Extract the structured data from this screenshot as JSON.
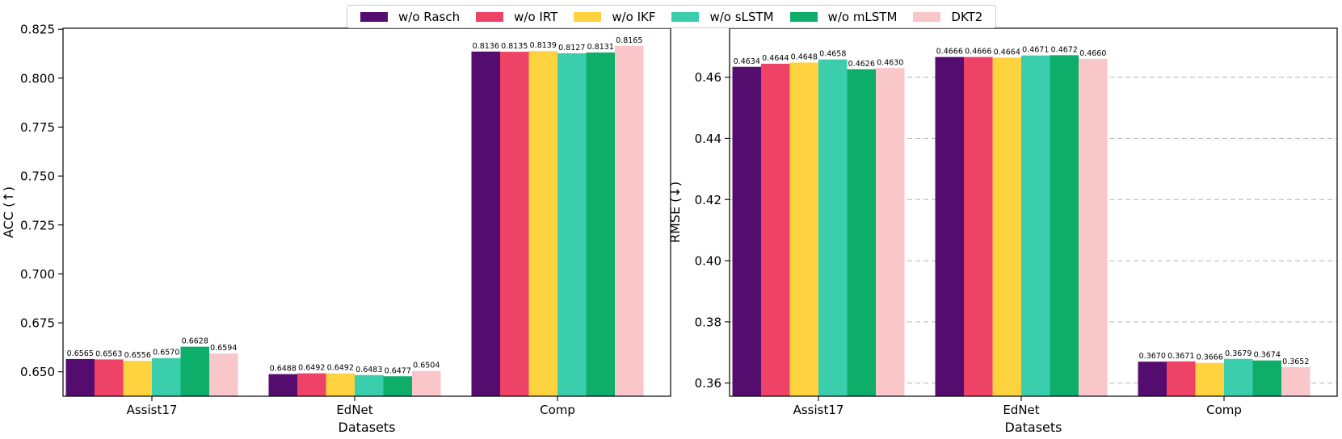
{
  "legend": {
    "items": [
      {
        "label": "w/o Rasch",
        "color": "#540D6E"
      },
      {
        "label": "w/o IRT",
        "color": "#EE4266"
      },
      {
        "label": "w/o IKF",
        "color": "#FFD23F"
      },
      {
        "label": "w/o sLSTM",
        "color": "#3BCEAC"
      },
      {
        "label": "w/o mLSTM",
        "color": "#0EAD69"
      },
      {
        "label": "DKT2",
        "color": "#F9C6C9"
      }
    ]
  },
  "chart_data": [
    {
      "type": "bar",
      "title": "",
      "xlabel": "Datasets",
      "ylabel": "ACC (↑)",
      "categories": [
        "Assist17",
        "EdNet",
        "Comp"
      ],
      "ylim": [
        0.6375,
        0.8255
      ],
      "yticks": [
        0.65,
        0.675,
        0.7,
        0.725,
        0.75,
        0.775,
        0.8,
        0.825
      ],
      "ytick_labels": [
        "0.650",
        "0.675",
        "0.700",
        "0.725",
        "0.750",
        "0.775",
        "0.800",
        "0.825"
      ],
      "grid": false,
      "series": [
        {
          "name": "w/o Rasch",
          "color": "#540D6E",
          "values": [
            0.6565,
            0.6488,
            0.8136
          ],
          "labels": [
            "0.6565",
            "0.6488",
            "0.8136"
          ]
        },
        {
          "name": "w/o IRT",
          "color": "#EE4266",
          "values": [
            0.6563,
            0.6492,
            0.8135
          ],
          "labels": [
            "0.6563",
            "0.6492",
            "0.8135"
          ]
        },
        {
          "name": "w/o IKF",
          "color": "#FFD23F",
          "values": [
            0.6556,
            0.6492,
            0.8139
          ],
          "labels": [
            "0.6556",
            "0.6492",
            "0.8139"
          ]
        },
        {
          "name": "w/o sLSTM",
          "color": "#3BCEAC",
          "values": [
            0.657,
            0.6483,
            0.8127
          ],
          "labels": [
            "0.6570",
            "0.6483",
            "0.8127"
          ]
        },
        {
          "name": "w/o mLSTM",
          "color": "#0EAD69",
          "values": [
            0.6628,
            0.6477,
            0.8131
          ],
          "labels": [
            "0.6628",
            "0.6477",
            "0.8131"
          ]
        },
        {
          "name": "DKT2",
          "color": "#F9C6C9",
          "values": [
            0.6594,
            0.6504,
            0.8165
          ],
          "labels": [
            "0.6594",
            "0.6504",
            "0.8165"
          ]
        }
      ]
    },
    {
      "type": "bar",
      "title": "",
      "xlabel": "Datasets",
      "ylabel": "RMSE (↓)",
      "categories": [
        "Assist17",
        "EdNet",
        "Comp"
      ],
      "ylim": [
        0.3557,
        0.476
      ],
      "yticks": [
        0.36,
        0.38,
        0.4,
        0.42,
        0.44,
        0.46
      ],
      "ytick_labels": [
        "0.36",
        "0.38",
        "0.40",
        "0.42",
        "0.44",
        "0.46"
      ],
      "grid": true,
      "series": [
        {
          "name": "w/o Rasch",
          "color": "#540D6E",
          "values": [
            0.4634,
            0.4666,
            0.367
          ],
          "labels": [
            "0.4634",
            "0.4666",
            "0.3670"
          ]
        },
        {
          "name": "w/o IRT",
          "color": "#EE4266",
          "values": [
            0.4644,
            0.4666,
            0.3671
          ],
          "labels": [
            "0.4644",
            "0.4666",
            "0.3671"
          ]
        },
        {
          "name": "w/o IKF",
          "color": "#FFD23F",
          "values": [
            0.4648,
            0.4664,
            0.3666
          ],
          "labels": [
            "0.4648",
            "0.4664",
            "0.3666"
          ]
        },
        {
          "name": "w/o sLSTM",
          "color": "#3BCEAC",
          "values": [
            0.4658,
            0.4671,
            0.3679
          ],
          "labels": [
            "0.4658",
            "0.4671",
            "0.3679"
          ]
        },
        {
          "name": "w/o mLSTM",
          "color": "#0EAD69",
          "values": [
            0.4626,
            0.4672,
            0.3674
          ],
          "labels": [
            "0.4626",
            "0.4672",
            "0.3674"
          ]
        },
        {
          "name": "DKT2",
          "color": "#F9C6C9",
          "values": [
            0.463,
            0.466,
            0.3652
          ],
          "labels": [
            "0.4630",
            "0.4660",
            "0.3652"
          ]
        }
      ]
    }
  ]
}
